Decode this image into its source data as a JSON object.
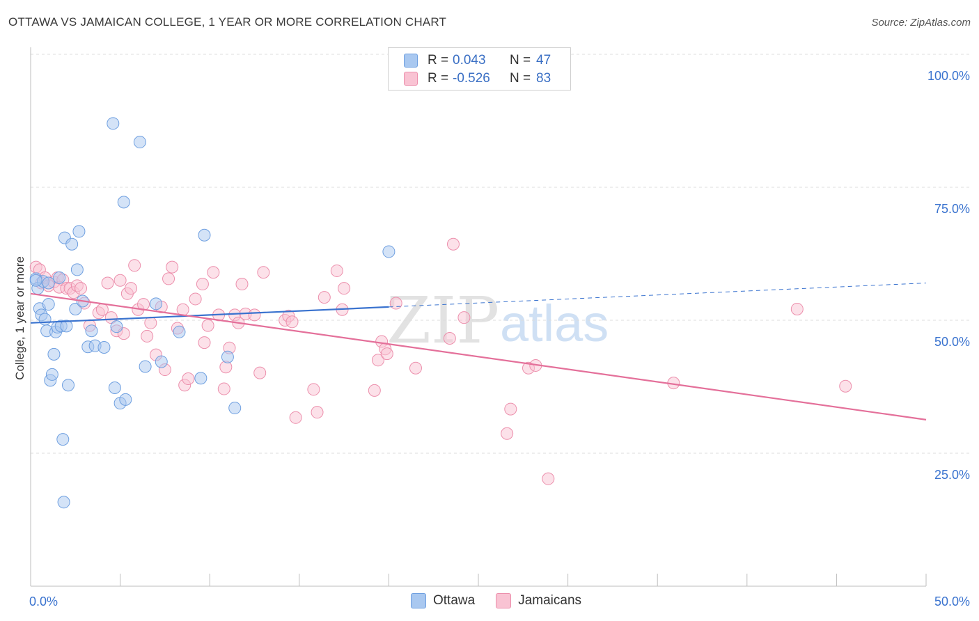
{
  "header": {
    "title": "OTTAWA VS JAMAICAN COLLEGE, 1 YEAR OR MORE CORRELATION CHART",
    "source": "Source: ZipAtlas.com"
  },
  "legend": {
    "rows": [
      {
        "r_label": "R =",
        "r_value": "0.043",
        "n_label": "N =",
        "n_value": "47",
        "color": "#a9c8f0",
        "border": "#6e9fe0"
      },
      {
        "r_label": "R =",
        "r_value": "-0.526",
        "n_label": "N =",
        "n_value": "83",
        "color": "#f9c3d3",
        "border": "#ec8fac"
      }
    ]
  },
  "bottom_legend": {
    "items": [
      {
        "label": "Ottawa",
        "color": "#a9c8f0",
        "border": "#6e9fe0"
      },
      {
        "label": "Jamaicans",
        "color": "#f9c3d3",
        "border": "#ec8fac"
      }
    ]
  },
  "watermark": {
    "zip": "ZIP",
    "atlas": "atlas"
  },
  "chart_data": {
    "type": "scatter",
    "title": "OTTAWA VS JAMAICAN COLLEGE, 1 YEAR OR MORE CORRELATION CHART",
    "xlabel": "",
    "ylabel": "College, 1 year or more",
    "xlim": [
      0,
      50
    ],
    "ylim": [
      0,
      105
    ],
    "x_tick_labels": [
      "0.0%",
      "50.0%"
    ],
    "y_ticks": [
      {
        "value": 25,
        "label": "25.0%"
      },
      {
        "value": 50,
        "label": "50.0%"
      },
      {
        "value": 75,
        "label": "75.0%"
      },
      {
        "value": 100,
        "label": "100.0%"
      }
    ],
    "grid": true,
    "series": [
      {
        "name": "Ottawa",
        "color": "#a9c8f0",
        "stroke": "#6e9fe0",
        "line_color": "#3a73cf",
        "trend": {
          "x1": 0,
          "y1": 49.5,
          "x2": 20,
          "y2": 52.5,
          "dash_to_x": 50,
          "dash_to_y": 57
        },
        "points": [
          [
            0.3,
            57.8
          ],
          [
            0.4,
            56.0
          ],
          [
            0.5,
            52.2
          ],
          [
            0.6,
            51.0
          ],
          [
            0.7,
            57.3
          ],
          [
            0.8,
            50.2
          ],
          [
            0.9,
            48.0
          ],
          [
            1.0,
            53.0
          ],
          [
            1.1,
            38.7
          ],
          [
            1.2,
            39.8
          ],
          [
            1.3,
            43.6
          ],
          [
            1.4,
            47.8
          ],
          [
            1.5,
            48.7
          ],
          [
            1.6,
            58.0
          ],
          [
            1.7,
            48.9
          ],
          [
            1.8,
            27.6
          ],
          [
            1.85,
            15.8
          ],
          [
            1.9,
            65.5
          ],
          [
            2.0,
            48.9
          ],
          [
            2.1,
            37.8
          ],
          [
            2.3,
            64.3
          ],
          [
            2.5,
            52.1
          ],
          [
            2.6,
            59.5
          ],
          [
            2.7,
            66.7
          ],
          [
            2.9,
            53.6
          ],
          [
            3.2,
            45.0
          ],
          [
            3.4,
            48.0
          ],
          [
            3.6,
            45.2
          ],
          [
            4.1,
            44.9
          ],
          [
            4.6,
            87.0
          ],
          [
            4.7,
            37.3
          ],
          [
            4.8,
            48.8
          ],
          [
            5.0,
            34.4
          ],
          [
            5.2,
            72.2
          ],
          [
            5.3,
            35.1
          ],
          [
            6.1,
            83.5
          ],
          [
            6.4,
            41.3
          ],
          [
            7.0,
            53.1
          ],
          [
            7.3,
            42.2
          ],
          [
            8.3,
            47.8
          ],
          [
            9.5,
            39.1
          ],
          [
            9.7,
            66.0
          ],
          [
            11.0,
            43.1
          ],
          [
            11.4,
            33.5
          ],
          [
            20.0,
            62.9
          ],
          [
            0.3,
            57.5
          ],
          [
            1.0,
            57.0
          ]
        ]
      },
      {
        "name": "Jamaicans",
        "color": "#f9c3d3",
        "stroke": "#ec8fac",
        "line_color": "#e4709a",
        "trend": {
          "x1": 0,
          "y1": 55.0,
          "x2": 50,
          "y2": 31.3
        },
        "points": [
          [
            0.3,
            60.0
          ],
          [
            0.5,
            59.5
          ],
          [
            0.6,
            57.0
          ],
          [
            0.8,
            58.0
          ],
          [
            1.0,
            56.5
          ],
          [
            1.3,
            57.2
          ],
          [
            1.5,
            58.0
          ],
          [
            1.6,
            56.2
          ],
          [
            1.8,
            57.6
          ],
          [
            2.0,
            56.0
          ],
          [
            2.2,
            56.0
          ],
          [
            2.4,
            55.2
          ],
          [
            2.6,
            56.5
          ],
          [
            2.8,
            56.0
          ],
          [
            3.0,
            53.2
          ],
          [
            3.3,
            49.0
          ],
          [
            3.8,
            51.4
          ],
          [
            4.0,
            52.0
          ],
          [
            4.3,
            57.0
          ],
          [
            4.5,
            50.5
          ],
          [
            4.8,
            48.0
          ],
          [
            5.0,
            57.5
          ],
          [
            5.2,
            47.5
          ],
          [
            5.4,
            55.0
          ],
          [
            5.6,
            56.0
          ],
          [
            5.8,
            60.3
          ],
          [
            6.0,
            52.0
          ],
          [
            6.3,
            53.0
          ],
          [
            6.5,
            47.0
          ],
          [
            6.7,
            49.5
          ],
          [
            7.0,
            43.5
          ],
          [
            7.3,
            52.5
          ],
          [
            7.5,
            40.7
          ],
          [
            7.7,
            57.8
          ],
          [
            7.9,
            60.0
          ],
          [
            8.2,
            48.5
          ],
          [
            8.5,
            52.0
          ],
          [
            8.6,
            37.8
          ],
          [
            8.8,
            39.0
          ],
          [
            9.2,
            54.0
          ],
          [
            9.6,
            56.8
          ],
          [
            9.7,
            45.8
          ],
          [
            9.9,
            49.0
          ],
          [
            10.2,
            59.0
          ],
          [
            10.5,
            51.0
          ],
          [
            10.8,
            37.1
          ],
          [
            10.9,
            41.2
          ],
          [
            11.1,
            44.8
          ],
          [
            11.4,
            51.0
          ],
          [
            11.6,
            49.5
          ],
          [
            11.8,
            56.8
          ],
          [
            12.0,
            51.2
          ],
          [
            12.5,
            51.0
          ],
          [
            12.8,
            40.1
          ],
          [
            13.0,
            59.0
          ],
          [
            14.2,
            50.0
          ],
          [
            14.4,
            50.8
          ],
          [
            14.6,
            49.7
          ],
          [
            14.8,
            31.7
          ],
          [
            15.8,
            37.0
          ],
          [
            16.0,
            32.7
          ],
          [
            16.4,
            54.3
          ],
          [
            17.1,
            59.3
          ],
          [
            17.4,
            52.0
          ],
          [
            17.5,
            56.0
          ],
          [
            19.2,
            36.8
          ],
          [
            19.4,
            42.5
          ],
          [
            19.6,
            46.0
          ],
          [
            19.8,
            44.6
          ],
          [
            19.9,
            43.7
          ],
          [
            20.4,
            53.2
          ],
          [
            21.5,
            41.0
          ],
          [
            23.4,
            46.6
          ],
          [
            23.6,
            64.3
          ],
          [
            24.2,
            50.5
          ],
          [
            26.6,
            28.7
          ],
          [
            26.8,
            33.3
          ],
          [
            27.8,
            41.0
          ],
          [
            28.2,
            41.5
          ],
          [
            28.9,
            20.2
          ],
          [
            35.9,
            38.2
          ],
          [
            42.8,
            52.1
          ],
          [
            45.5,
            37.6
          ]
        ]
      }
    ]
  }
}
